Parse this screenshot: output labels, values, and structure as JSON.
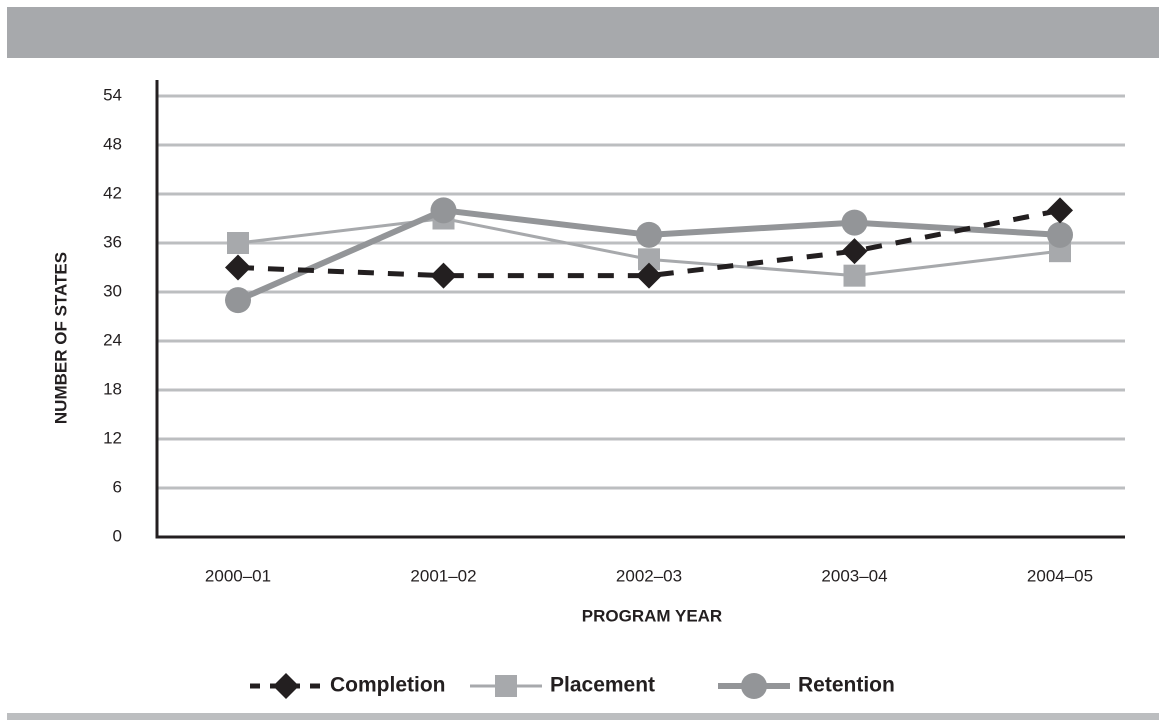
{
  "chart_data": {
    "type": "line",
    "x_label": "PROGRAM YEAR",
    "y_label": "NUMBER OF STATES",
    "categories": [
      "2000–01",
      "2001–02",
      "2002–03",
      "2003–04",
      "2004–05"
    ],
    "series": [
      {
        "name": "Completion",
        "color": "#231f20",
        "marker": "diamond",
        "dash": true,
        "width": 5,
        "values": [
          33,
          32,
          32,
          35,
          40
        ]
      },
      {
        "name": "Placement",
        "color": "#a7a9ac",
        "marker": "square",
        "dash": false,
        "width": 3,
        "values": [
          36,
          39,
          34,
          32,
          35
        ]
      },
      {
        "name": "Retention",
        "color": "#939598",
        "marker": "circle",
        "dash": false,
        "width": 6,
        "values": [
          29,
          40,
          37,
          38.5,
          37
        ]
      }
    ],
    "ylim": [
      0,
      54
    ],
    "yticks": [
      0,
      6,
      12,
      18,
      24,
      30,
      36,
      42,
      48,
      54
    ],
    "grid": true,
    "legend": "bottom"
  }
}
